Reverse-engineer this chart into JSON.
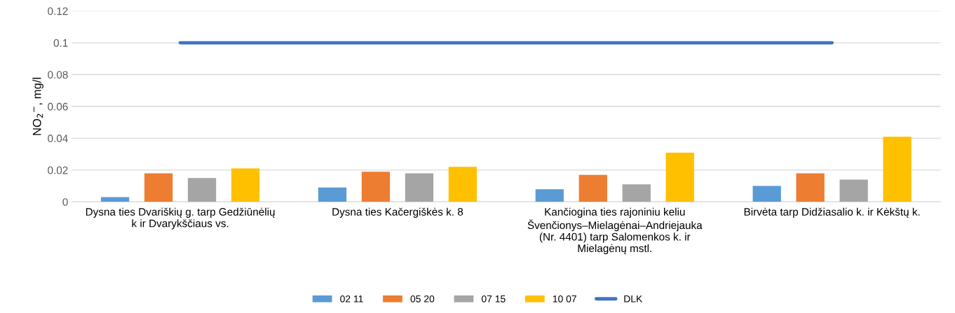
{
  "chart_data": {
    "type": "bar",
    "ylabel": "NO$_{2}$$^{−}$, mg/l",
    "categories": [
      "Dysna ties Dvariškių g. tarp Gedžiūnėlių\nk ir Dvarykščiaus vs.",
      "Dysna ties Kačergiškės k. 8",
      "Kančiogina ties rajoniniu keliu\nŠvenčionys–Mielagėnai–Andriejauka\n(Nr. 4401) tarp Salomenkos k. ir\nMielagėnų mstl.",
      "Birvėta tarp Didžiasalio k. ir Kėkštų k."
    ],
    "series": [
      {
        "name": "02 11",
        "color": "#5b9bd5",
        "values": [
          0.003,
          0.009,
          0.008,
          0.01
        ]
      },
      {
        "name": "05 20",
        "color": "#ed7d31",
        "values": [
          0.018,
          0.019,
          0.017,
          0.018
        ]
      },
      {
        "name": "07 15",
        "color": "#a5a5a5",
        "values": [
          0.015,
          0.018,
          0.011,
          0.014
        ]
      },
      {
        "name": "10 07",
        "color": "#ffc000",
        "values": [
          0.021,
          0.022,
          0.031,
          0.041
        ]
      },
      {
        "name": "DLK",
        "color": "#4472c4",
        "type": "line",
        "values": [
          0.1,
          0.1,
          0.1,
          0.1
        ]
      }
    ],
    "ylim": [
      0,
      0.12
    ],
    "yticks": [
      0,
      0.02,
      0.04,
      0.06,
      0.08,
      0.1,
      0.12
    ],
    "grid": "y",
    "legend": "bottom"
  }
}
